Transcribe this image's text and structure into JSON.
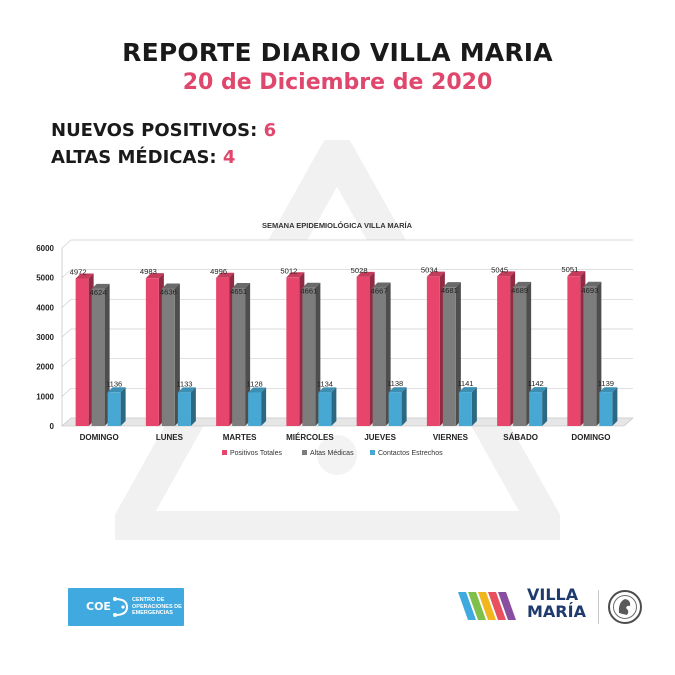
{
  "header": {
    "title": "REPORTE DIARIO VILLA MARIA",
    "subtitle": "20 de Diciembre de 2020"
  },
  "stats": {
    "nuevos_label": "NUEVOS POSITIVOS:",
    "nuevos_value": "6",
    "altas_label": "ALTAS MÉDICAS:",
    "altas_value": "4"
  },
  "colors": {
    "accent": "#e0476c",
    "positivos": "#e8456c",
    "altas": "#7d7d7d",
    "contactos": "#46a8d3"
  },
  "chart_data": {
    "type": "bar",
    "title": "SEMANA EPIDEMIOLÓGICA VILLA MARÍA",
    "categories": [
      "DOMINGO",
      "LUNES",
      "MARTES",
      "MIÉRCOLES",
      "JUEVES",
      "VIERNES",
      "SÁBADO",
      "DOMINGO"
    ],
    "series": [
      {
        "name": "Positivos Totales",
        "color": "#e8456c",
        "values": [
          4972,
          4983,
          4996,
          5012,
          5028,
          5034,
          5045,
          5051
        ]
      },
      {
        "name": "Altas Médicas",
        "color": "#7d7d7d",
        "values": [
          4624,
          4636,
          4651,
          4661,
          4667,
          4681,
          4689,
          4693
        ]
      },
      {
        "name": "Contactos Estrechos",
        "color": "#46a8d3",
        "values": [
          1136,
          1133,
          1128,
          1134,
          1138,
          1141,
          1142,
          1139
        ]
      }
    ],
    "ylim": [
      0,
      6000
    ],
    "yticks": [
      0,
      1000,
      2000,
      3000,
      4000,
      5000,
      6000
    ],
    "grid": true,
    "legend": "bottom"
  },
  "footer": {
    "coe_word": "COE",
    "coe_text": "CENTRO DE OPERACIONES DE EMERGENCIAS",
    "vm_line1": "VILLA",
    "vm_line2": "MARÍA"
  }
}
